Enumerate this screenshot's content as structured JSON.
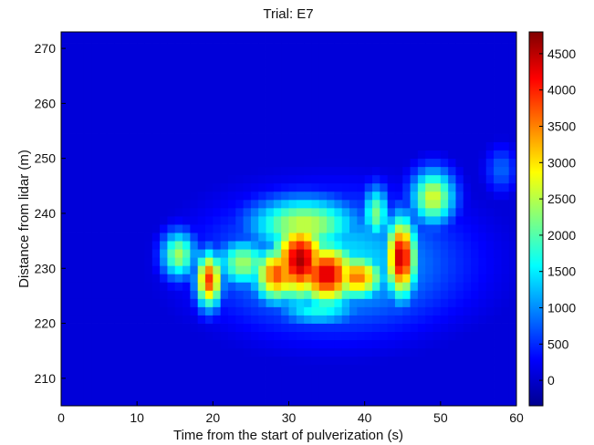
{
  "chart_data": {
    "type": "heatmap",
    "title": "Trial: E7",
    "xlabel": "Time from the start of pulverization (s)",
    "ylabel": "Distance from lidar (m)",
    "xlim": [
      0,
      60
    ],
    "ylim": [
      205,
      273
    ],
    "xticks": [
      "0",
      "10",
      "20",
      "30",
      "40",
      "50",
      "60"
    ],
    "yticks": [
      "210",
      "220",
      "230",
      "240",
      "250",
      "260",
      "270"
    ],
    "colorbar": {
      "range": [
        -350,
        4800
      ],
      "ticks": [
        "0",
        "500",
        "1000",
        "1500",
        "2000",
        "2500",
        "3000",
        "3500",
        "4000",
        "4500"
      ],
      "colormap": "jet"
    },
    "cell_size": {
      "time_s": 1,
      "distance_m": 1.5
    },
    "background_value": 100,
    "blobs": [
      {
        "t": 15.5,
        "d": 232.5,
        "value": 2400,
        "sigma_t": 1.6,
        "sigma_d": 3.0
      },
      {
        "t": 19.5,
        "d": 228.0,
        "value": 3900,
        "sigma_t": 1.2,
        "sigma_d": 3.5
      },
      {
        "t": 24.0,
        "d": 231.0,
        "value": 2400,
        "sigma_t": 2.4,
        "sigma_d": 3.0
      },
      {
        "t": 28.5,
        "d": 229.0,
        "value": 3800,
        "sigma_t": 2.2,
        "sigma_d": 3.5
      },
      {
        "t": 31.5,
        "d": 231.5,
        "value": 4600,
        "sigma_t": 2.5,
        "sigma_d": 5.0
      },
      {
        "t": 35.0,
        "d": 229.0,
        "value": 4400,
        "sigma_t": 2.8,
        "sigma_d": 4.0
      },
      {
        "t": 39.0,
        "d": 228.5,
        "value": 3600,
        "sigma_t": 2.5,
        "sigma_d": 2.8
      },
      {
        "t": 44.8,
        "d": 232.0,
        "value": 4500,
        "sigma_t": 1.4,
        "sigma_d": 5.0
      },
      {
        "t": 41.5,
        "d": 240.0,
        "value": 2200,
        "sigma_t": 1.2,
        "sigma_d": 3.5
      },
      {
        "t": 49.0,
        "d": 243.0,
        "value": 2700,
        "sigma_t": 2.0,
        "sigma_d": 3.5
      },
      {
        "t": 32.0,
        "d": 238.0,
        "value": 2600,
        "sigma_t": 5.0,
        "sigma_d": 3.5
      },
      {
        "t": 34.0,
        "d": 222.5,
        "value": 1700,
        "sigma_t": 4.0,
        "sigma_d": 2.0
      },
      {
        "t": 36.0,
        "d": 231.0,
        "value": 1500,
        "sigma_t": 11.0,
        "sigma_d": 8.0
      },
      {
        "t": 58.0,
        "d": 248.0,
        "value": 800,
        "sigma_t": 1.5,
        "sigma_d": 3.0
      }
    ]
  }
}
